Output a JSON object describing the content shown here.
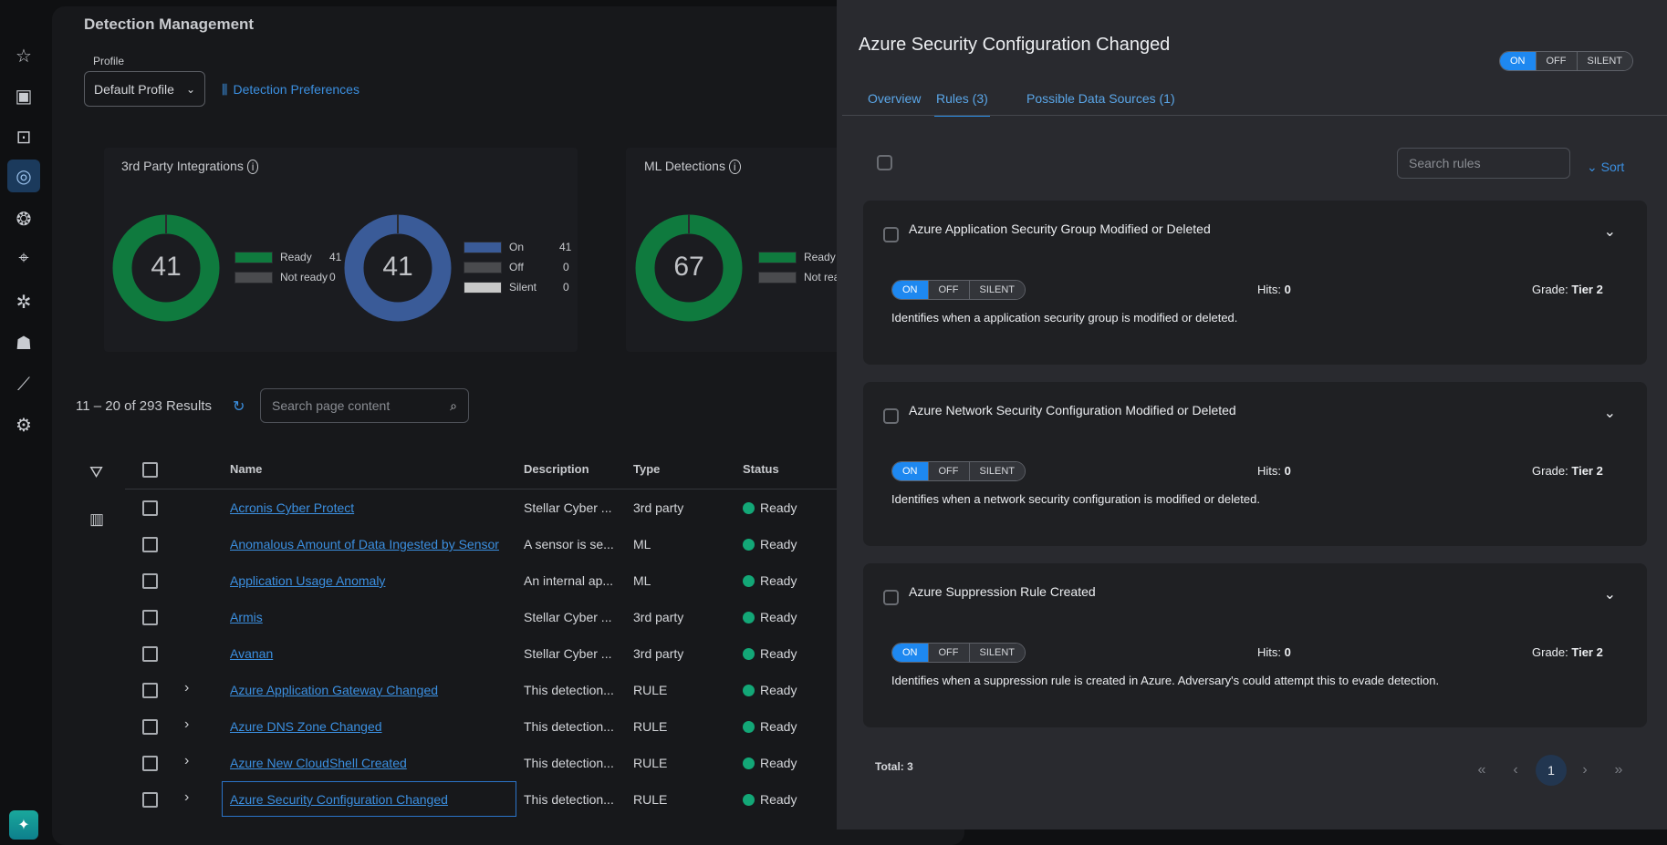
{
  "sidebar": {
    "items": [
      {
        "icon": "star-icon",
        "glyph": "☆"
      },
      {
        "icon": "dashboard-card-icon",
        "glyph": "▣"
      },
      {
        "icon": "briefcase-icon",
        "glyph": "⊡"
      },
      {
        "icon": "detection-radar-icon",
        "glyph": "◎",
        "active": true
      },
      {
        "icon": "brain-icon",
        "glyph": "❂"
      },
      {
        "icon": "crosshair-icon",
        "glyph": "⌖"
      },
      {
        "icon": "network-icon",
        "glyph": "✲"
      },
      {
        "icon": "robot-icon",
        "glyph": "☗"
      },
      {
        "icon": "analytics-icon",
        "glyph": "⟋"
      },
      {
        "icon": "gear-icon",
        "glyph": "⚙"
      }
    ],
    "ai_glyph": "✦"
  },
  "main": {
    "title": "Detection Management",
    "profile_label": "Profile",
    "profile_value": "Default Profile",
    "preferences_link": "Detection Preferences",
    "cards": [
      {
        "title": "3rd Party Integrations",
        "donuts": [
          {
            "total": "41",
            "legend": [
              {
                "label": "Ready",
                "value": "41",
                "color": "#0f7a3e"
              },
              {
                "label": "Not ready",
                "value": "0",
                "color": "#4a4b4e"
              }
            ]
          },
          {
            "total": "41",
            "legend": [
              {
                "label": "On",
                "value": "41",
                "color": "#3a5b98"
              },
              {
                "label": "Off",
                "value": "0",
                "color": "#4a4b4e"
              },
              {
                "label": "Silent",
                "value": "0",
                "color": "#c8c8c8"
              }
            ]
          }
        ]
      },
      {
        "title": "ML Detections",
        "donuts": [
          {
            "total": "67",
            "legend": [
              {
                "label": "Ready",
                "value": "",
                "color": "#0f7a3e"
              },
              {
                "label": "Not ready",
                "value": "",
                "color": "#4a4b4e"
              }
            ]
          }
        ]
      }
    ],
    "results_text": "11 – 20 of 293 Results",
    "search_placeholder": "Search page content",
    "table": {
      "headers": {
        "name": "Name",
        "description": "Description",
        "type": "Type",
        "status": "Status"
      },
      "rows": [
        {
          "name": "Acronis Cyber Protect",
          "description": "Stellar Cyber ...",
          "type": "3rd party",
          "status": "Ready",
          "expandable": false
        },
        {
          "name": "Anomalous Amount of Data Ingested by Sensor",
          "description": "A sensor is se...",
          "type": "ML",
          "status": "Ready",
          "expandable": false
        },
        {
          "name": "Application Usage Anomaly",
          "description": "An internal ap...",
          "type": "ML",
          "status": "Ready",
          "expandable": false
        },
        {
          "name": "Armis",
          "description": "Stellar Cyber ...",
          "type": "3rd party",
          "status": "Ready",
          "expandable": false
        },
        {
          "name": "Avanan",
          "description": "Stellar Cyber ...",
          "type": "3rd party",
          "status": "Ready",
          "expandable": false
        },
        {
          "name": "Azure Application Gateway Changed",
          "description": "This detection...",
          "type": "RULE",
          "status": "Ready",
          "expandable": true
        },
        {
          "name": "Azure DNS Zone Changed",
          "description": "This detection...",
          "type": "RULE",
          "status": "Ready",
          "expandable": true
        },
        {
          "name": "Azure New CloudShell Created",
          "description": "This detection...",
          "type": "RULE",
          "status": "Ready",
          "expandable": true
        },
        {
          "name": "Azure Security Configuration Changed",
          "description": "This detection...",
          "type": "RULE",
          "status": "Ready",
          "expandable": true,
          "focused": true
        }
      ]
    }
  },
  "panel": {
    "title": "Azure Security Configuration Changed",
    "toggle": {
      "on": "ON",
      "off": "OFF",
      "silent": "SILENT",
      "selected": "ON"
    },
    "tabs": [
      {
        "label": "Overview"
      },
      {
        "label": "Rules (3)",
        "active": true
      },
      {
        "label": "Possible Data Sources (1)"
      }
    ],
    "search_placeholder": "Search rules",
    "sort_label": "Sort",
    "hits_label": "Hits:",
    "grade_label": "Grade:",
    "rules": [
      {
        "title": "Azure Application Security Group Modified or Deleted",
        "hits": "0",
        "grade": "Tier 2",
        "description": "Identifies when a application security group is modified or deleted."
      },
      {
        "title": "Azure Network Security Configuration Modified or Deleted",
        "hits": "0",
        "grade": "Tier 2",
        "description": "Identifies when a network security configuration is modified or deleted."
      },
      {
        "title": "Azure Suppression Rule Created",
        "hits": "0",
        "grade": "Tier 2",
        "description": "Identifies when a suppression rule is created in Azure. Adversary's could attempt this to evade detection."
      }
    ],
    "total": "Total: 3",
    "pagination": {
      "first": "«",
      "prev": "‹",
      "current": "1",
      "next": "›",
      "last": "»"
    }
  }
}
